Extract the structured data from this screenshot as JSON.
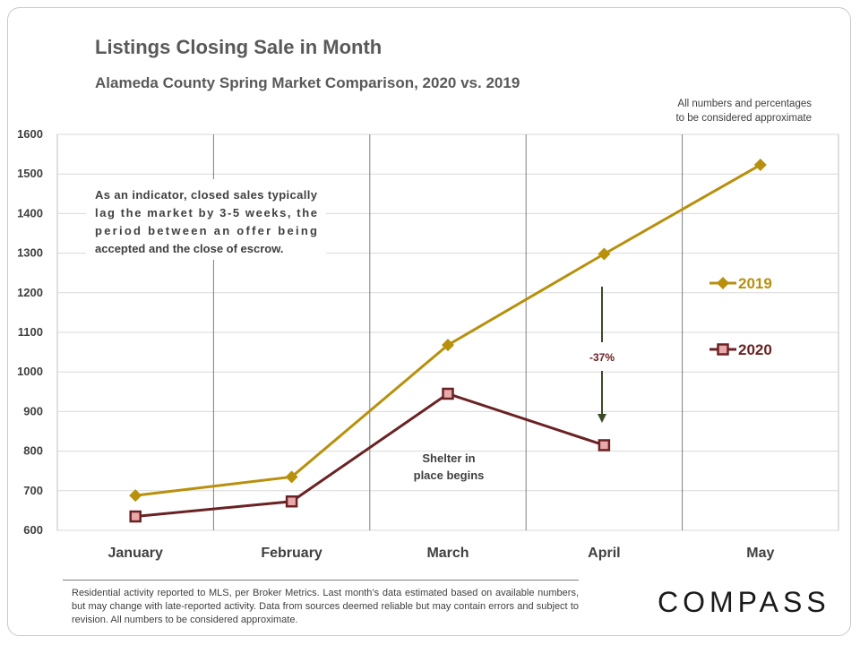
{
  "header": {
    "title": "Listings Closing Sale in Month",
    "subtitle": "Alameda County Spring Market Comparison,  2020 vs. 2019",
    "note_line1": "All numbers and percentages",
    "note_line2": "to be considered approximate"
  },
  "chart_data": {
    "type": "line",
    "categories": [
      "January",
      "February",
      "March",
      "April",
      "May"
    ],
    "ylim": [
      600,
      1600
    ],
    "yticks": [
      600,
      700,
      800,
      900,
      1000,
      1100,
      1200,
      1300,
      1400,
      1500,
      1600
    ],
    "grid": true,
    "legend_position": "right",
    "series": [
      {
        "name": "2019",
        "values": [
          688,
          735,
          1068,
          1298,
          1523
        ],
        "color": "#b8900c",
        "marker": "diamond"
      },
      {
        "name": "2020",
        "values": [
          635,
          673,
          945,
          815,
          null
        ],
        "color": "#6b2224",
        "marker": "square"
      }
    ],
    "annotations": {
      "indicator_lines": [
        "As an indicator, closed sales typically",
        "lag  the  market  by  3-5  weeks,  the",
        "period    between    an    offer    being",
        "accepted and the close of escrow."
      ],
      "shelter_lines": [
        "Shelter in",
        "place begins"
      ],
      "change_label": "-37%"
    }
  },
  "footer": {
    "disclaimer": "Residential activity reported to MLS, per Broker Metrics. Last month’s data estimated based on available numbers, but may change with late-reported activity. Data from sources deemed reliable but may contain errors and subject to revision. All numbers to be considered approximate.",
    "logo": "COMPASS"
  }
}
